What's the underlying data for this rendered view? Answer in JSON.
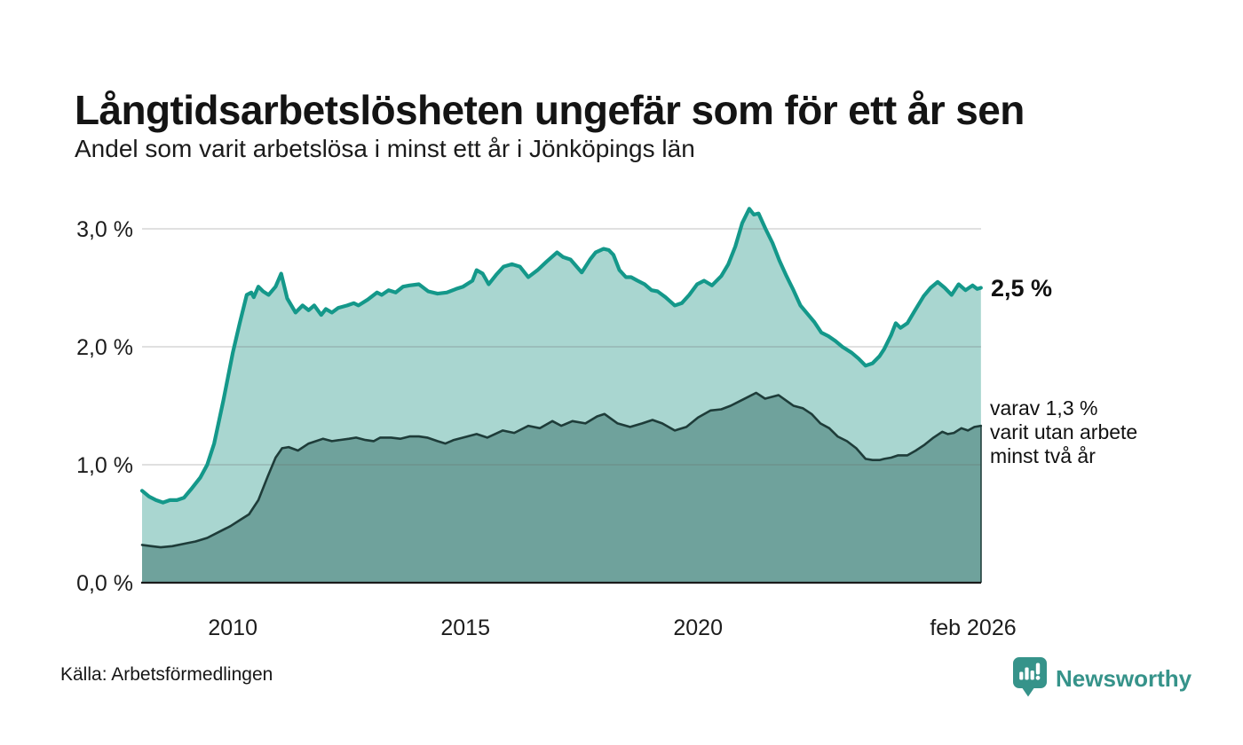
{
  "title": "Långtidsarbetslösheten ungefär som för ett år sen",
  "subtitle": "Andel som varit arbetslösa i minst ett år i Jönköpings län",
  "source": "Källa: Arbetsförmedlingen",
  "branding": {
    "name": "Newsworthy",
    "logo_icon": "speech-bubble-bar-chart-icon",
    "color": "#36938a"
  },
  "annotations": {
    "latest_total": "2,5 %",
    "secondary_label": {
      "lines": [
        "varav 1,3 %",
        "varit utan arbete",
        "minst två år"
      ]
    }
  },
  "colors": {
    "long_term_line": "#14988a",
    "long_term_fill": "#a9d6d0",
    "two_year_line": "#1e3c39",
    "two_year_fill": "#6fa29c",
    "gridline": "#d6d6d6",
    "axis_line": "#1b1b1b",
    "text": "#1c1c1c"
  },
  "chart_data": {
    "type": "area",
    "title": "Långtidsarbetslösheten ungefär som för ett år sen",
    "subtitle": "Andel som varit arbetslösa i minst ett år i Jönköpings län",
    "grid": true,
    "legend_position": "right-annotations",
    "x_axis": {
      "range": [
        2008.05,
        2026.083
      ],
      "ticks": [
        {
          "label": "2010",
          "year": 2010
        },
        {
          "label": "2015",
          "year": 2015
        },
        {
          "label": "2020",
          "year": 2020
        },
        {
          "label": "feb 2026",
          "year": 2026.083
        }
      ]
    },
    "y_axis": {
      "range": [
        0,
        3.3
      ],
      "unit": "%",
      "tick_values": [
        0,
        1,
        2,
        3
      ],
      "tick_labels": [
        "0,0 %",
        "1,0 %",
        "2,0 %",
        "3,0 %"
      ]
    },
    "series": [
      {
        "id": "minst-ett-ar",
        "name": "Arbetslösa minst ett år",
        "latest_value": 2.5,
        "color": "#14988a",
        "fill": "#a9d6d0",
        "points": [
          [
            2008.05,
            0.78
          ],
          [
            2008.2,
            0.73
          ],
          [
            2008.35,
            0.7
          ],
          [
            2008.5,
            0.68
          ],
          [
            2008.65,
            0.7
          ],
          [
            2008.8,
            0.7
          ],
          [
            2008.95,
            0.72
          ],
          [
            2009.1,
            0.79
          ],
          [
            2009.3,
            0.89
          ],
          [
            2009.45,
            1.0
          ],
          [
            2009.6,
            1.18
          ],
          [
            2009.8,
            1.55
          ],
          [
            2010.0,
            1.95
          ],
          [
            2010.15,
            2.2
          ],
          [
            2010.3,
            2.44
          ],
          [
            2010.4,
            2.46
          ],
          [
            2010.45,
            2.42
          ],
          [
            2010.55,
            2.51
          ],
          [
            2010.65,
            2.47
          ],
          [
            2010.77,
            2.44
          ],
          [
            2010.92,
            2.51
          ],
          [
            2011.04,
            2.62
          ],
          [
            2011.17,
            2.41
          ],
          [
            2011.35,
            2.29
          ],
          [
            2011.5,
            2.35
          ],
          [
            2011.63,
            2.31
          ],
          [
            2011.75,
            2.35
          ],
          [
            2011.9,
            2.27
          ],
          [
            2012.0,
            2.32
          ],
          [
            2012.13,
            2.29
          ],
          [
            2012.27,
            2.33
          ],
          [
            2012.46,
            2.35
          ],
          [
            2012.6,
            2.37
          ],
          [
            2012.7,
            2.35
          ],
          [
            2012.9,
            2.4
          ],
          [
            2013.1,
            2.46
          ],
          [
            2013.2,
            2.44
          ],
          [
            2013.35,
            2.48
          ],
          [
            2013.5,
            2.46
          ],
          [
            2013.66,
            2.51
          ],
          [
            2013.8,
            2.52
          ],
          [
            2014.0,
            2.53
          ],
          [
            2014.2,
            2.47
          ],
          [
            2014.4,
            2.45
          ],
          [
            2014.6,
            2.46
          ],
          [
            2014.8,
            2.49
          ],
          [
            2014.95,
            2.51
          ],
          [
            2015.15,
            2.56
          ],
          [
            2015.24,
            2.65
          ],
          [
            2015.37,
            2.62
          ],
          [
            2015.5,
            2.53
          ],
          [
            2015.66,
            2.61
          ],
          [
            2015.82,
            2.68
          ],
          [
            2016.0,
            2.7
          ],
          [
            2016.17,
            2.68
          ],
          [
            2016.35,
            2.59
          ],
          [
            2016.55,
            2.65
          ],
          [
            2016.74,
            2.72
          ],
          [
            2016.97,
            2.8
          ],
          [
            2017.1,
            2.76
          ],
          [
            2017.26,
            2.74
          ],
          [
            2017.5,
            2.63
          ],
          [
            2017.68,
            2.74
          ],
          [
            2017.8,
            2.8
          ],
          [
            2017.97,
            2.83
          ],
          [
            2018.08,
            2.82
          ],
          [
            2018.18,
            2.78
          ],
          [
            2018.31,
            2.65
          ],
          [
            2018.45,
            2.59
          ],
          [
            2018.56,
            2.59
          ],
          [
            2018.7,
            2.56
          ],
          [
            2018.85,
            2.53
          ],
          [
            2019.0,
            2.48
          ],
          [
            2019.13,
            2.47
          ],
          [
            2019.3,
            2.42
          ],
          [
            2019.5,
            2.35
          ],
          [
            2019.65,
            2.37
          ],
          [
            2019.81,
            2.44
          ],
          [
            2019.98,
            2.53
          ],
          [
            2020.13,
            2.56
          ],
          [
            2020.3,
            2.52
          ],
          [
            2020.5,
            2.6
          ],
          [
            2020.65,
            2.7
          ],
          [
            2020.8,
            2.85
          ],
          [
            2020.95,
            3.05
          ],
          [
            2021.1,
            3.17
          ],
          [
            2021.2,
            3.12
          ],
          [
            2021.3,
            3.13
          ],
          [
            2021.45,
            3.0
          ],
          [
            2021.6,
            2.88
          ],
          [
            2021.75,
            2.73
          ],
          [
            2021.9,
            2.6
          ],
          [
            2022.05,
            2.48
          ],
          [
            2022.2,
            2.35
          ],
          [
            2022.35,
            2.28
          ],
          [
            2022.5,
            2.21
          ],
          [
            2022.65,
            2.12
          ],
          [
            2022.8,
            2.09
          ],
          [
            2022.95,
            2.05
          ],
          [
            2023.1,
            2.0
          ],
          [
            2023.3,
            1.95
          ],
          [
            2023.45,
            1.9
          ],
          [
            2023.6,
            1.84
          ],
          [
            2023.75,
            1.86
          ],
          [
            2023.9,
            1.92
          ],
          [
            2024.0,
            1.98
          ],
          [
            2024.15,
            2.1
          ],
          [
            2024.25,
            2.2
          ],
          [
            2024.35,
            2.16
          ],
          [
            2024.5,
            2.2
          ],
          [
            2024.65,
            2.3
          ],
          [
            2024.85,
            2.43
          ],
          [
            2025.0,
            2.5
          ],
          [
            2025.15,
            2.55
          ],
          [
            2025.3,
            2.5
          ],
          [
            2025.45,
            2.44
          ],
          [
            2025.6,
            2.53
          ],
          [
            2025.75,
            2.48
          ],
          [
            2025.9,
            2.52
          ],
          [
            2026.0,
            2.49
          ],
          [
            2026.08,
            2.5
          ]
        ]
      },
      {
        "id": "minst-tva-ar",
        "name": "Varit utan arbete minst två år",
        "latest_value": 1.3,
        "color": "#1e3c39",
        "fill": "#6fa29c",
        "points": [
          [
            2008.05,
            0.32
          ],
          [
            2008.25,
            0.31
          ],
          [
            2008.45,
            0.3
          ],
          [
            2008.7,
            0.31
          ],
          [
            2008.95,
            0.33
          ],
          [
            2009.2,
            0.35
          ],
          [
            2009.45,
            0.38
          ],
          [
            2009.7,
            0.43
          ],
          [
            2009.95,
            0.48
          ],
          [
            2010.15,
            0.53
          ],
          [
            2010.35,
            0.58
          ],
          [
            2010.55,
            0.7
          ],
          [
            2010.75,
            0.9
          ],
          [
            2010.92,
            1.06
          ],
          [
            2011.06,
            1.14
          ],
          [
            2011.2,
            1.15
          ],
          [
            2011.4,
            1.12
          ],
          [
            2011.63,
            1.18
          ],
          [
            2011.94,
            1.22
          ],
          [
            2012.13,
            1.2
          ],
          [
            2012.3,
            1.21
          ],
          [
            2012.5,
            1.22
          ],
          [
            2012.65,
            1.23
          ],
          [
            2012.85,
            1.21
          ],
          [
            2013.03,
            1.2
          ],
          [
            2013.17,
            1.23
          ],
          [
            2013.4,
            1.23
          ],
          [
            2013.6,
            1.22
          ],
          [
            2013.8,
            1.24
          ],
          [
            2014.0,
            1.24
          ],
          [
            2014.18,
            1.23
          ],
          [
            2014.4,
            1.2
          ],
          [
            2014.57,
            1.18
          ],
          [
            2014.75,
            1.21
          ],
          [
            2014.95,
            1.23
          ],
          [
            2015.24,
            1.26
          ],
          [
            2015.47,
            1.23
          ],
          [
            2015.8,
            1.29
          ],
          [
            2016.05,
            1.27
          ],
          [
            2016.35,
            1.33
          ],
          [
            2016.6,
            1.31
          ],
          [
            2016.87,
            1.37
          ],
          [
            2017.06,
            1.33
          ],
          [
            2017.3,
            1.37
          ],
          [
            2017.58,
            1.35
          ],
          [
            2017.83,
            1.41
          ],
          [
            2017.99,
            1.43
          ],
          [
            2018.27,
            1.35
          ],
          [
            2018.54,
            1.32
          ],
          [
            2018.8,
            1.35
          ],
          [
            2019.02,
            1.38
          ],
          [
            2019.23,
            1.35
          ],
          [
            2019.5,
            1.29
          ],
          [
            2019.75,
            1.32
          ],
          [
            2020.0,
            1.4
          ],
          [
            2020.27,
            1.46
          ],
          [
            2020.5,
            1.47
          ],
          [
            2020.7,
            1.5
          ],
          [
            2020.9,
            1.54
          ],
          [
            2021.05,
            1.57
          ],
          [
            2021.25,
            1.61
          ],
          [
            2021.44,
            1.56
          ],
          [
            2021.73,
            1.59
          ],
          [
            2022.05,
            1.5
          ],
          [
            2022.25,
            1.48
          ],
          [
            2022.44,
            1.43
          ],
          [
            2022.63,
            1.35
          ],
          [
            2022.82,
            1.31
          ],
          [
            2023.0,
            1.24
          ],
          [
            2023.2,
            1.2
          ],
          [
            2023.4,
            1.14
          ],
          [
            2023.6,
            1.05
          ],
          [
            2023.75,
            1.04
          ],
          [
            2023.9,
            1.04
          ],
          [
            2024.0,
            1.05
          ],
          [
            2024.15,
            1.06
          ],
          [
            2024.3,
            1.08
          ],
          [
            2024.5,
            1.08
          ],
          [
            2024.68,
            1.12
          ],
          [
            2024.87,
            1.17
          ],
          [
            2025.06,
            1.23
          ],
          [
            2025.25,
            1.28
          ],
          [
            2025.37,
            1.26
          ],
          [
            2025.5,
            1.27
          ],
          [
            2025.66,
            1.31
          ],
          [
            2025.8,
            1.29
          ],
          [
            2025.94,
            1.32
          ],
          [
            2026.08,
            1.33
          ]
        ]
      }
    ]
  }
}
